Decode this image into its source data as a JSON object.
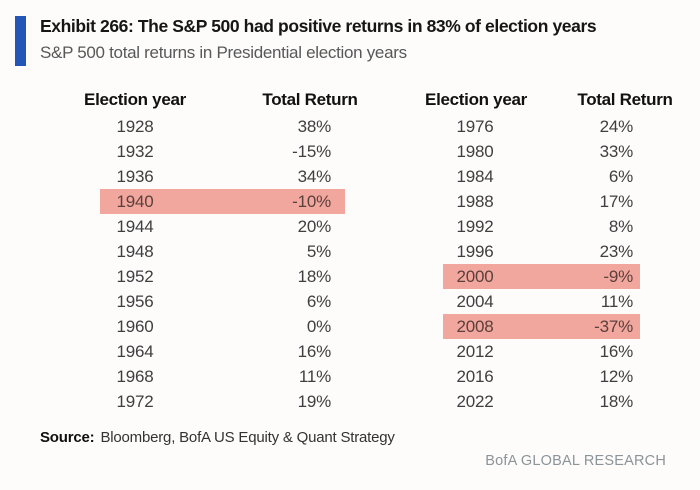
{
  "colors": {
    "accent_blue": "#2257b8",
    "highlight_pink": "#f1a69e",
    "brand_gray": "#8b9499"
  },
  "header": {
    "title": "Exhibit 266: The S&P 500 had positive returns in 83% of election years",
    "subtitle": "S&P 500 total returns in Presidential election years"
  },
  "table": {
    "column_headers": {
      "year": "Election year",
      "return": "Total Return"
    },
    "left_rows": [
      {
        "year": "1928",
        "ret": "38%",
        "highlight": false
      },
      {
        "year": "1932",
        "ret": "-15%",
        "highlight": false
      },
      {
        "year": "1936",
        "ret": "34%",
        "highlight": false
      },
      {
        "year": "1940",
        "ret": "-10%",
        "highlight": true
      },
      {
        "year": "1944",
        "ret": "20%",
        "highlight": false
      },
      {
        "year": "1948",
        "ret": "5%",
        "highlight": false
      },
      {
        "year": "1952",
        "ret": "18%",
        "highlight": false
      },
      {
        "year": "1956",
        "ret": "6%",
        "highlight": false
      },
      {
        "year": "1960",
        "ret": "0%",
        "highlight": false
      },
      {
        "year": "1964",
        "ret": "16%",
        "highlight": false
      },
      {
        "year": "1968",
        "ret": "11%",
        "highlight": false
      },
      {
        "year": "1972",
        "ret": "19%",
        "highlight": false
      }
    ],
    "right_rows": [
      {
        "year": "1976",
        "ret": "24%",
        "highlight": false
      },
      {
        "year": "1980",
        "ret": "33%",
        "highlight": false
      },
      {
        "year": "1984",
        "ret": "6%",
        "highlight": false
      },
      {
        "year": "1988",
        "ret": "17%",
        "highlight": false
      },
      {
        "year": "1992",
        "ret": "8%",
        "highlight": false
      },
      {
        "year": "1996",
        "ret": "23%",
        "highlight": false
      },
      {
        "year": "2000",
        "ret": "-9%",
        "highlight": true
      },
      {
        "year": "2004",
        "ret": "11%",
        "highlight": false
      },
      {
        "year": "2008",
        "ret": "-37%",
        "highlight": true
      },
      {
        "year": "2012",
        "ret": "16%",
        "highlight": false
      },
      {
        "year": "2016",
        "ret": "12%",
        "highlight": false
      },
      {
        "year": "2022",
        "ret": "18%",
        "highlight": false
      }
    ]
  },
  "footer": {
    "source_label": "Source:",
    "source_text": "Bloomberg, BofA US Equity & Quant Strategy",
    "branding": "BofA GLOBAL RESEARCH"
  },
  "chart_data": {
    "type": "table",
    "title": "Exhibit 266: The S&P 500 had positive returns in 83% of election years",
    "subtitle": "S&P 500 total returns in Presidential election years",
    "columns": [
      "Election year",
      "Total Return"
    ],
    "rows": [
      [
        1928,
        "38%"
      ],
      [
        1932,
        "-15%"
      ],
      [
        1936,
        "34%"
      ],
      [
        1940,
        "-10%"
      ],
      [
        1944,
        "20%"
      ],
      [
        1948,
        "5%"
      ],
      [
        1952,
        "18%"
      ],
      [
        1956,
        "6%"
      ],
      [
        1960,
        "0%"
      ],
      [
        1964,
        "16%"
      ],
      [
        1968,
        "11%"
      ],
      [
        1972,
        "19%"
      ],
      [
        1976,
        "24%"
      ],
      [
        1980,
        "33%"
      ],
      [
        1984,
        "6%"
      ],
      [
        1988,
        "17%"
      ],
      [
        1992,
        "8%"
      ],
      [
        1996,
        "23%"
      ],
      [
        2000,
        "-9%"
      ],
      [
        2004,
        "11%"
      ],
      [
        2008,
        "-37%"
      ],
      [
        2012,
        "16%"
      ],
      [
        2016,
        "12%"
      ],
      [
        2022,
        "18%"
      ]
    ],
    "highlighted_years": [
      1940,
      2000,
      2008
    ],
    "source": "Bloomberg, BofA US Equity & Quant Strategy"
  }
}
